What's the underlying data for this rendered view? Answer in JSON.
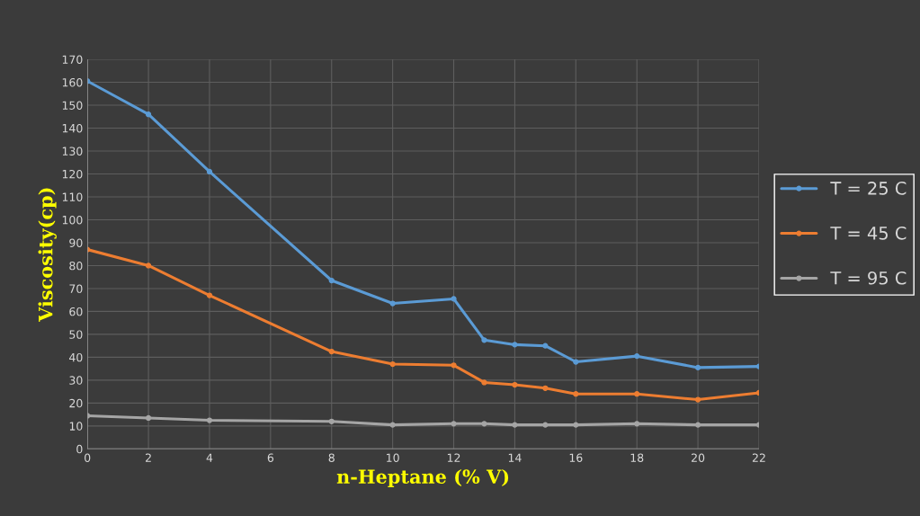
{
  "chart_data": {
    "type": "line",
    "xlabel": "n-Heptane (% V)",
    "ylabel": "Viscosity(cp)",
    "x": [
      0,
      2,
      4,
      8,
      10,
      12,
      13,
      14,
      15,
      16,
      18,
      20,
      22
    ],
    "series": [
      {
        "name": "T = 25 C",
        "color": "#5b9bd5",
        "values": [
          160.5,
          146,
          121,
          73.5,
          63.5,
          65.5,
          47.5,
          45.5,
          45,
          38,
          40.5,
          35.5,
          36
        ]
      },
      {
        "name": "T = 45 C",
        "color": "#ed7d31",
        "values": [
          87,
          80,
          67,
          42.5,
          37,
          36.5,
          29,
          28,
          26.5,
          24,
          24,
          21.5,
          24.5
        ]
      },
      {
        "name": "T = 95 C",
        "color": "#a5a5a5",
        "values": [
          14.5,
          13.5,
          12.5,
          12,
          10.5,
          11,
          11,
          10.5,
          10.5,
          10.5,
          11,
          10.5,
          10.5
        ]
      }
    ],
    "xlim": [
      0,
      22
    ],
    "xticks": [
      0,
      2,
      4,
      6,
      8,
      10,
      12,
      14,
      16,
      18,
      20,
      22
    ],
    "ylim": [
      0,
      170
    ],
    "yticks": [
      0,
      10,
      20,
      30,
      40,
      50,
      60,
      70,
      80,
      90,
      100,
      110,
      120,
      130,
      140,
      150,
      160,
      170
    ],
    "grid": true,
    "legend": "right",
    "marker": "circle",
    "line_style": "solid"
  }
}
